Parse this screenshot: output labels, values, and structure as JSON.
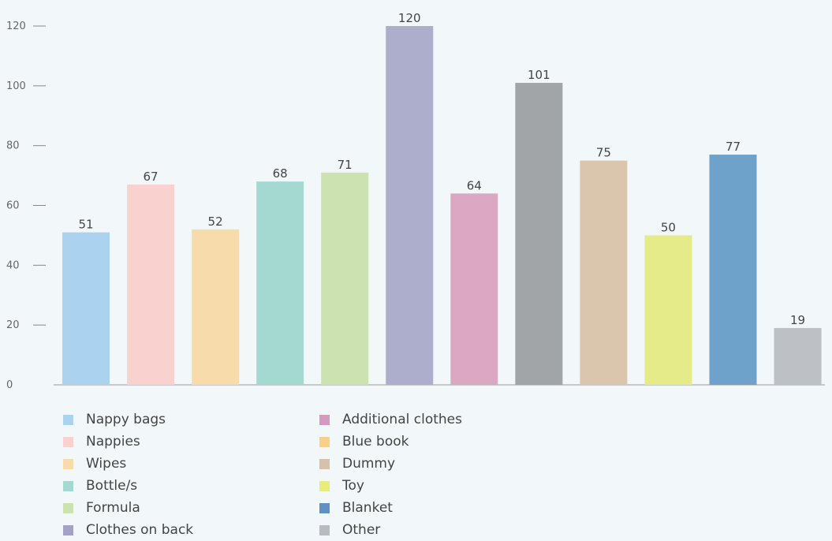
{
  "chart_data": {
    "type": "bar",
    "title": "",
    "xlabel": "",
    "ylabel": "",
    "ylim": [
      0,
      120
    ],
    "yticks": [
      0,
      20,
      40,
      60,
      80,
      100,
      120
    ],
    "grid": false,
    "legend_position": "bottom-left",
    "categories": [
      "Nappy bags",
      "Nappies",
      "Wipes",
      "Bottle/s",
      "Formula",
      "Clothes on back",
      "Additional clothes",
      "Blue book",
      "Dummy",
      "Toy",
      "Blanket",
      "Other"
    ],
    "values": [
      51,
      67,
      52,
      68,
      71,
      120,
      64,
      101,
      75,
      50,
      77,
      19
    ],
    "bar_colors": [
      "#abd3ef",
      "#f9d2d0",
      "#f8dbab",
      "#a4d9d1",
      "#cce2b0",
      "#adaecb",
      "#dca7c3",
      "#a2a5a8",
      "#dac5ad",
      "#e4eb88",
      "#6ea2ca",
      "#bdc0c5"
    ],
    "legend": [
      {
        "label": "Nappy bags",
        "color": "#abd3ef"
      },
      {
        "label": "Nappies",
        "color": "#f9d2d0"
      },
      {
        "label": "Wipes",
        "color": "#f8dbab"
      },
      {
        "label": "Bottle/s",
        "color": "#a4d9d1"
      },
      {
        "label": "Formula",
        "color": "#cce2b0"
      },
      {
        "label": "Clothes on back",
        "color": "#a3a1c4"
      },
      {
        "label": "Additional clothes",
        "color": "#d69ac1"
      },
      {
        "label": "Blue book",
        "color": "#f8d08a"
      },
      {
        "label": "Dummy",
        "color": "#d6c1aa"
      },
      {
        "label": "Toy",
        "color": "#e7ec7a"
      },
      {
        "label": "Blanket",
        "color": "#5f91c3"
      },
      {
        "label": "Other",
        "color": "#b8bbbf"
      }
    ]
  }
}
